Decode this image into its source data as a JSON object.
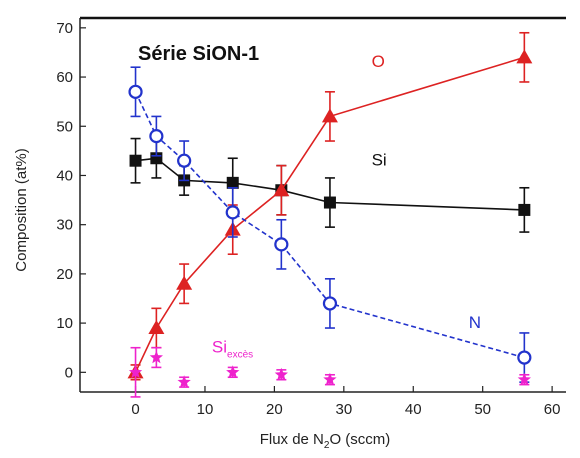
{
  "chart_data": {
    "type": "line",
    "title": "Série SiON-1",
    "xlabel_main": "Flux de N",
    "xlabel_sub": "2",
    "xlabel_rest": "O (sccm)",
    "ylabel": "Composition (at%)",
    "xlim": [
      -8,
      62
    ],
    "ylim": [
      -4,
      72
    ],
    "xticks": [
      0,
      10,
      20,
      30,
      40,
      50,
      60
    ],
    "yticks": [
      0,
      10,
      20,
      30,
      40,
      50,
      60,
      70
    ],
    "grid": false,
    "legend": "none (series labeled directly on plot)",
    "series": [
      {
        "name": "Si",
        "label_main": "Si",
        "label_sub": "",
        "color": "#111111",
        "marker": "square",
        "filled": true,
        "line_style": "solid",
        "label_at": [
          34,
          42
        ],
        "x": [
          0,
          3,
          7,
          14,
          21,
          28,
          56
        ],
        "y": [
          43,
          43.5,
          39,
          38.5,
          37,
          34.5,
          33
        ],
        "err": [
          4.5,
          4,
          3,
          5,
          5,
          5,
          4.5
        ]
      },
      {
        "name": "O",
        "label_main": "O",
        "label_sub": "",
        "color": "#dd2222",
        "marker": "triangle",
        "filled": true,
        "line_style": "solid",
        "label_at": [
          34,
          62
        ],
        "x": [
          0,
          3,
          7,
          14,
          21,
          28,
          56
        ],
        "y": [
          0,
          9,
          18,
          29,
          37,
          52,
          64
        ],
        "err": [
          1.5,
          4,
          4,
          5,
          5,
          5,
          5
        ]
      },
      {
        "name": "N",
        "label_main": "N",
        "label_sub": "",
        "color": "#2233cc",
        "marker": "circle",
        "filled": false,
        "line_style": "dashed",
        "label_at": [
          48,
          9
        ],
        "x": [
          0,
          3,
          7,
          14,
          21,
          28,
          56
        ],
        "y": [
          57,
          48,
          43,
          32.5,
          26,
          14,
          3
        ],
        "err": [
          5,
          4,
          4,
          5,
          5,
          5,
          5
        ]
      },
      {
        "name": "Si excès",
        "label_main": "Si",
        "label_sub": "excès",
        "color": "#ee22cc",
        "marker": "star",
        "filled": true,
        "line_style": "none",
        "label_at": [
          11,
          4
        ],
        "x": [
          0,
          3,
          7,
          14,
          21,
          28,
          56
        ],
        "y": [
          0,
          3,
          -2,
          0,
          -0.5,
          -1.5,
          -1.5
        ],
        "err": [
          5,
          2,
          1,
          1,
          1,
          1,
          1
        ]
      }
    ]
  }
}
